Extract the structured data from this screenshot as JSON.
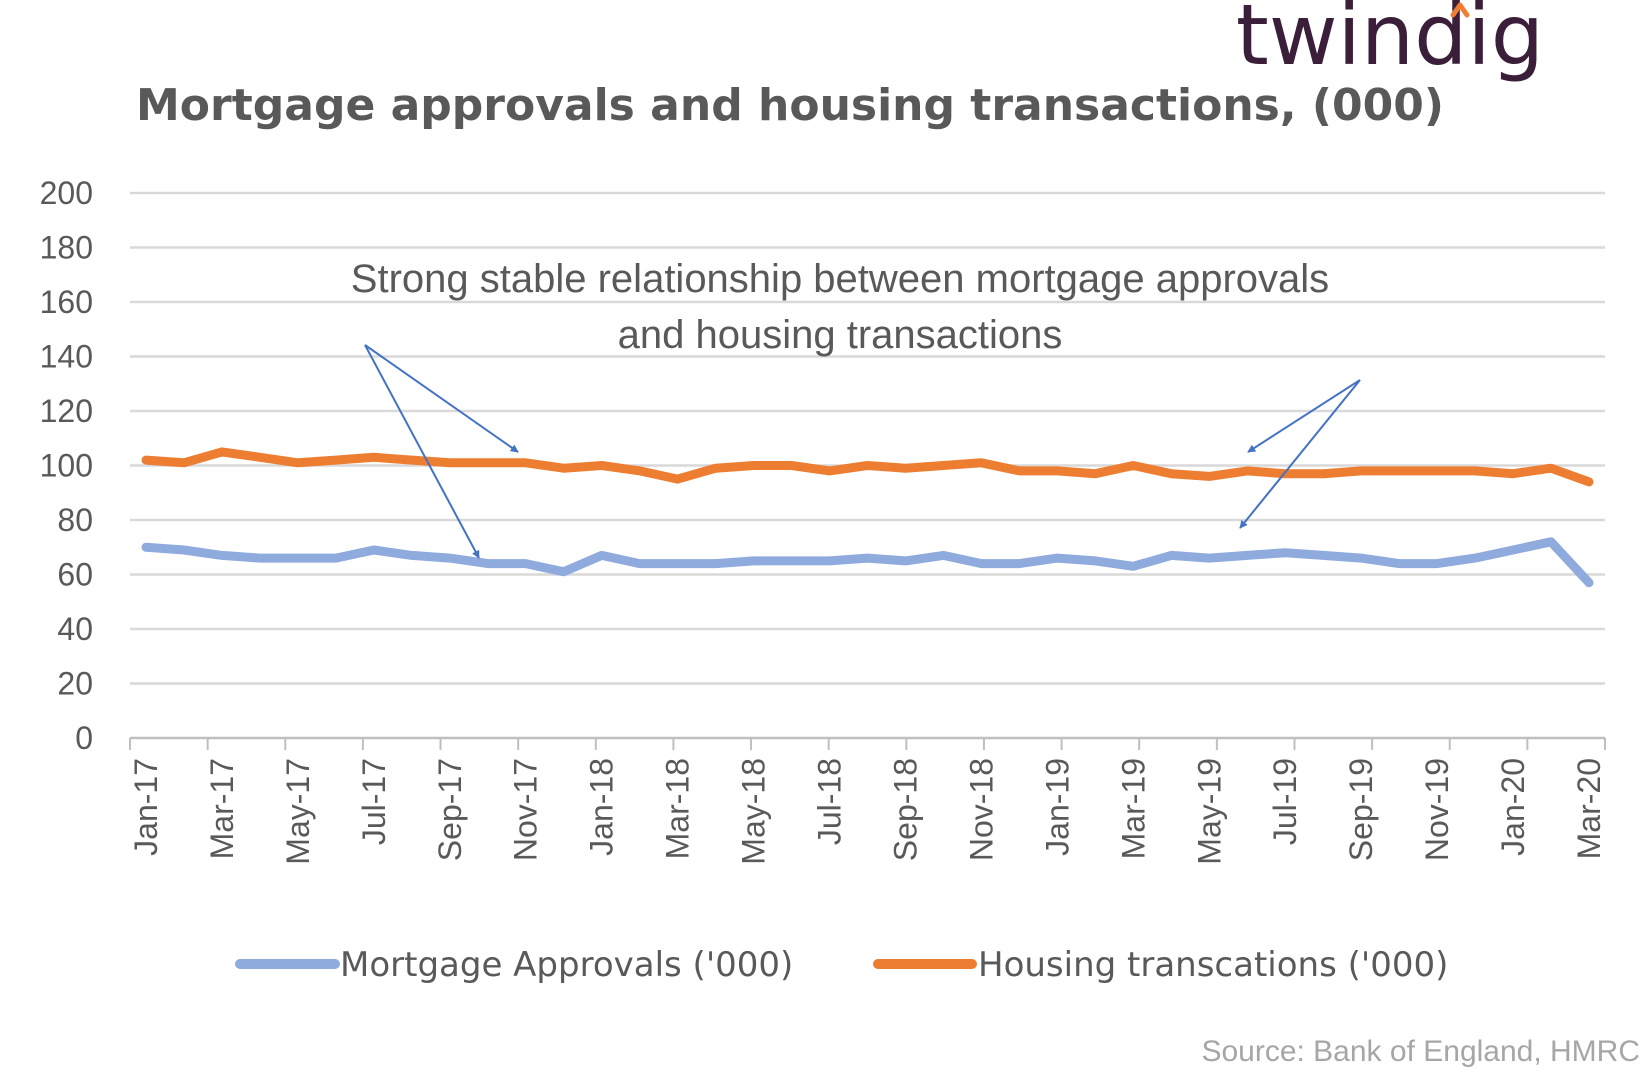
{
  "brand": {
    "name": "twindig",
    "accent_color": "#f07d32",
    "text_color": "#3b1f3a"
  },
  "source": "Source: Bank of England, HMRC",
  "chart_data": {
    "type": "line",
    "title": "Mortgage approvals and housing transactions, (000)",
    "xlabel": "",
    "ylabel": "",
    "ylim": [
      0,
      200
    ],
    "yticks": [
      0,
      20,
      40,
      60,
      80,
      100,
      120,
      140,
      160,
      180,
      200
    ],
    "grid": true,
    "legend_position": "bottom",
    "x": [
      "Jan-17",
      "Feb-17",
      "Mar-17",
      "Apr-17",
      "May-17",
      "Jun-17",
      "Jul-17",
      "Aug-17",
      "Sep-17",
      "Oct-17",
      "Nov-17",
      "Dec-17",
      "Jan-18",
      "Feb-18",
      "Mar-18",
      "Apr-18",
      "May-18",
      "Jun-18",
      "Jul-18",
      "Aug-18",
      "Sep-18",
      "Oct-18",
      "Nov-18",
      "Dec-18",
      "Jan-19",
      "Feb-19",
      "Mar-19",
      "Apr-19",
      "May-19",
      "Jun-19",
      "Jul-19",
      "Aug-19",
      "Sep-19",
      "Oct-19",
      "Nov-19",
      "Dec-19",
      "Jan-20",
      "Feb-20",
      "Mar-20"
    ],
    "x_tick_labels": [
      "Jan-17",
      "Mar-17",
      "May-17",
      "Jul-17",
      "Sep-17",
      "Nov-17",
      "Jan-18",
      "Mar-18",
      "May-18",
      "Jul-18",
      "Sep-18",
      "Nov-18",
      "Jan-19",
      "Mar-19",
      "May-19",
      "Jul-19",
      "Sep-19",
      "Nov-19",
      "Jan-20",
      "Mar-20"
    ],
    "series": [
      {
        "name": "Mortgage Approvals ('000)",
        "color": "#8faadc",
        "values": [
          70,
          69,
          67,
          66,
          66,
          66,
          69,
          67,
          66,
          64,
          64,
          61,
          67,
          64,
          64,
          64,
          65,
          65,
          65,
          66,
          65,
          67,
          64,
          64,
          66,
          65,
          63,
          67,
          66,
          67,
          68,
          67,
          66,
          64,
          64,
          66,
          69,
          72,
          57
        ]
      },
      {
        "name": "Housing transcations ('000)",
        "color": "#ed7d31",
        "values": [
          102,
          101,
          105,
          103,
          101,
          102,
          103,
          102,
          101,
          101,
          101,
          99,
          100,
          98,
          95,
          99,
          100,
          100,
          98,
          100,
          99,
          100,
          101,
          98,
          98,
          97,
          100,
          97,
          96,
          98,
          97,
          97,
          98,
          98,
          98,
          98,
          97,
          99,
          94
        ]
      }
    ],
    "annotation": {
      "line1": "Strong stable relationship between mortgage approvals",
      "line2": "and housing transactions"
    }
  }
}
